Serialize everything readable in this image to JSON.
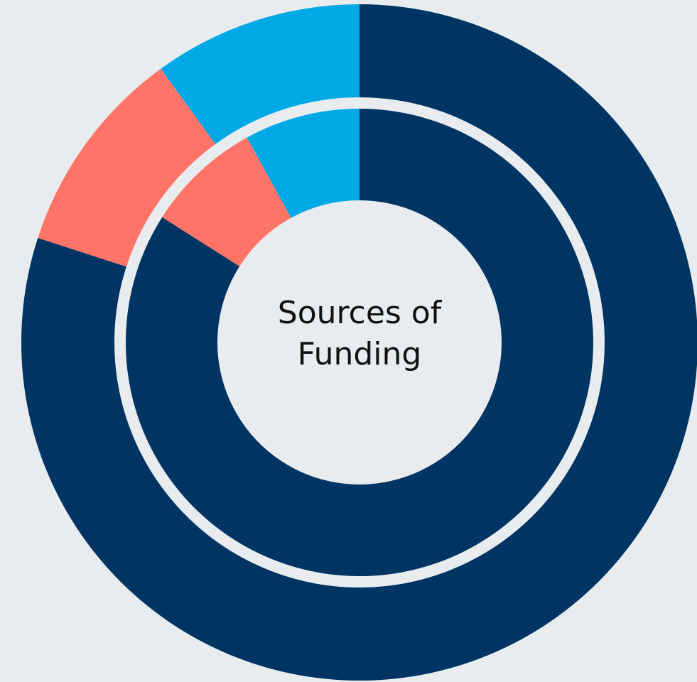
{
  "chart_data": {
    "type": "donut",
    "title": "Sources of Funding",
    "colors": [
      "#003462",
      "#ff7466",
      "#00a9e6"
    ],
    "background": "#e8ecee",
    "series": [
      {
        "values": [
          80,
          10,
          10
        ]
      },
      {
        "values": [
          84,
          8,
          8
        ]
      }
    ]
  }
}
